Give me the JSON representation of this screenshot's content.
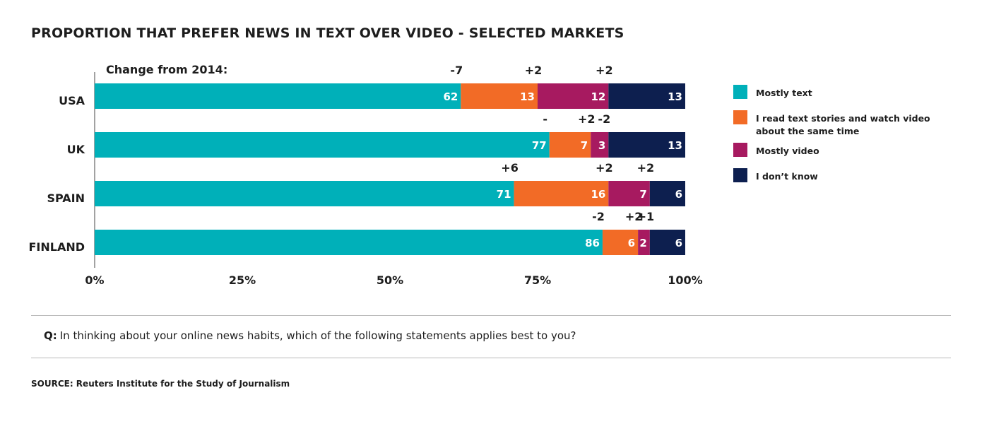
{
  "title": "PROPORTION THAT PREFER NEWS IN TEXT OVER VIDEO - SELECTED MARKETS",
  "change_header": "Change from 2014:",
  "question_label": "Q:",
  "question_text": "In thinking about your online news habits, which of the following statements applies best to you?",
  "source": "SOURCE: Reuters Institute for the Study of Journalism",
  "colors": {
    "mostly_text": "#00b0b9",
    "both": "#f26b26",
    "mostly_video": "#a71a60",
    "dont_know": "#0d1f4f",
    "text_dark": "#1d1d1d"
  },
  "legend": [
    {
      "label": "Mostly text",
      "color": "#00b0b9"
    },
    {
      "label": "I read text stories and watch video about the same time",
      "color": "#f26b26"
    },
    {
      "label": "Mostly video",
      "color": "#a71a60"
    },
    {
      "label": "I don’t know",
      "color": "#0d1f4f"
    }
  ],
  "chart_data": {
    "type": "bar",
    "orientation": "horizontal",
    "stacked": true,
    "categories": [
      "USA",
      "UK",
      "SPAIN",
      "FINLAND"
    ],
    "series": [
      {
        "name": "Mostly text",
        "values": [
          62,
          77,
          71,
          86
        ],
        "change_from_2014": [
          "-7",
          "-",
          "+6",
          "-2"
        ]
      },
      {
        "name": "I read text stories and watch video about the same time",
        "values": [
          13,
          7,
          16,
          6
        ],
        "change_from_2014": [
          "+2",
          "+2",
          "+2",
          "+2"
        ]
      },
      {
        "name": "Mostly video",
        "values": [
          12,
          3,
          7,
          2
        ],
        "change_from_2014": [
          "+2",
          "-2",
          "+2",
          "+1"
        ]
      },
      {
        "name": "I don’t know",
        "values": [
          13,
          13,
          6,
          6
        ],
        "change_from_2014": [
          "",
          "",
          "",
          ""
        ]
      }
    ],
    "xlim": [
      0,
      100
    ],
    "xticks": [
      "0%",
      "25%",
      "50%",
      "75%",
      "100%"
    ],
    "grid": false,
    "legend_position": "right"
  }
}
